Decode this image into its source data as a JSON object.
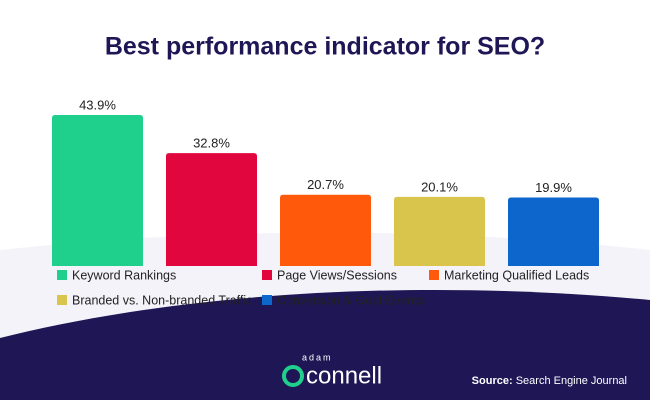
{
  "chart_data": {
    "type": "bar",
    "title": "Best performance indicator for SEO?",
    "categories": [
      "Keyword Rankings",
      "Page Views/Sessions",
      "Marketing Qualified Leads",
      "Branded vs. Non-branded Traffic",
      "Conversion & Goal Events"
    ],
    "values": [
      43.9,
      32.8,
      20.7,
      20.1,
      19.9
    ],
    "value_labels": [
      "43.9%",
      "32.8%",
      "20.7%",
      "20.1%",
      "19.9%"
    ],
    "colors": [
      "#1fcf8c",
      "#e1063e",
      "#ff5a0c",
      "#d9c44c",
      "#0d66cc"
    ]
  },
  "footer": {
    "brand_top": "adam",
    "brand": "connell",
    "source_label": "Source:",
    "source": "Search Engine Journal"
  }
}
